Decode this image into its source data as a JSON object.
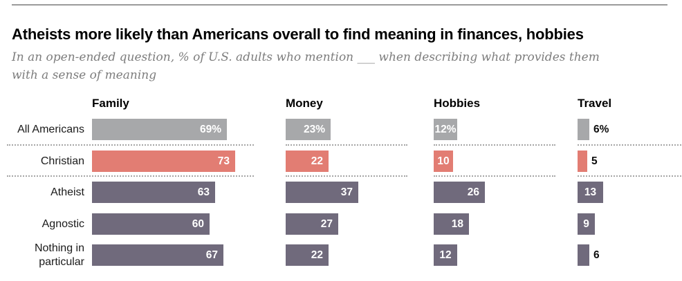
{
  "page": {
    "title": "Atheists more likely than Americans overall to find meaning in finances, hobbies",
    "subtitle": [
      "In an open-ended question, % of U.S. adults who mention ___ when describing what provides them",
      "with a sense of meaning"
    ]
  },
  "colors": {
    "all_americans_bar": "#a7a8aa",
    "christian_bar": "#e27d73",
    "unaffiliated_bar": "#706a7c",
    "top_rule": "#9a9a9a",
    "dotted_separator": "#a5a5a5",
    "inside_value_text": "#ffffff",
    "outside_value_text": "#0d0d0d",
    "subtitle_text": "#7d7d7d"
  },
  "chart_data": {
    "type": "bar",
    "orientation": "horizontal",
    "unit": "% of U.S. adults",
    "value_range": [
      0,
      73
    ],
    "grid": false,
    "legend": "none",
    "columns": [
      {
        "key": "family",
        "label": "Family"
      },
      {
        "key": "money",
        "label": "Money"
      },
      {
        "key": "hobbies",
        "label": "Hobbies"
      },
      {
        "key": "travel",
        "label": "Travel"
      }
    ],
    "rows": [
      {
        "label": "All Americans",
        "color": "#a7a8aa",
        "values": {
          "family": 69,
          "money": 23,
          "hobbies": 12,
          "travel": 6
        },
        "labels": {
          "family": "69%",
          "money": "23%",
          "hobbies": "12%",
          "travel": "6%"
        }
      },
      {
        "label": "Christian",
        "color": "#e27d73",
        "values": {
          "family": 73,
          "money": 22,
          "hobbies": 10,
          "travel": 5
        },
        "labels": {
          "family": "73",
          "money": "22",
          "hobbies": "10",
          "travel": "5"
        }
      },
      {
        "label": "Atheist",
        "color": "#706a7c",
        "values": {
          "family": 63,
          "money": 37,
          "hobbies": 26,
          "travel": 13
        },
        "labels": {
          "family": "63",
          "money": "37",
          "hobbies": "26",
          "travel": "13"
        }
      },
      {
        "label": "Agnostic",
        "color": "#706a7c",
        "values": {
          "family": 60,
          "money": 27,
          "hobbies": 18,
          "travel": 9
        },
        "labels": {
          "family": "60",
          "money": "27",
          "hobbies": "18",
          "travel": "9"
        }
      },
      {
        "label": "Nothing in particular",
        "color": "#706a7c",
        "values": {
          "family": 67,
          "money": 22,
          "hobbies": 12,
          "travel": 6
        },
        "labels": {
          "family": "67",
          "money": "22",
          "hobbies": "12",
          "travel": "6"
        }
      }
    ],
    "separators_after_rows": [
      0,
      1
    ]
  }
}
